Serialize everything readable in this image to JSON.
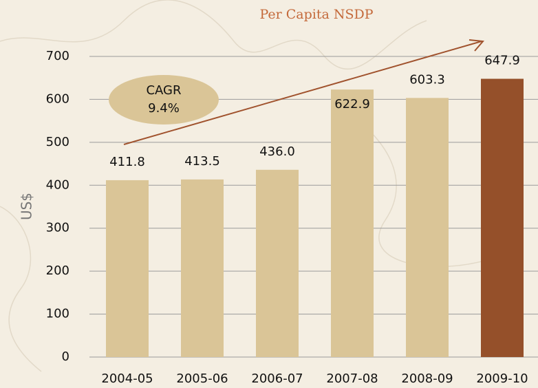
{
  "chart_data": {
    "type": "bar",
    "title": "Per Capita NSDP",
    "y_label": "US$",
    "categories": [
      "2004-05",
      "2005-06",
      "2006-07",
      "2007-08",
      "2008-09",
      "2009-10"
    ],
    "values": [
      411.8,
      413.5,
      436,
      622.9,
      603.3,
      647.9
    ],
    "value_labels": [
      "411.8",
      "413.5",
      "436.0",
      "622.9",
      "603.3",
      "647.9"
    ],
    "colors": [
      "#dac597",
      "#dac597",
      "#dac597",
      "#dac597",
      "#dac597",
      "#95502a"
    ],
    "ylim": [
      0,
      700
    ],
    "yticks": [
      0,
      100,
      200,
      300,
      400,
      500,
      600,
      700
    ],
    "grid": true,
    "annotations": [
      "CAGR",
      "9.4%"
    ]
  }
}
